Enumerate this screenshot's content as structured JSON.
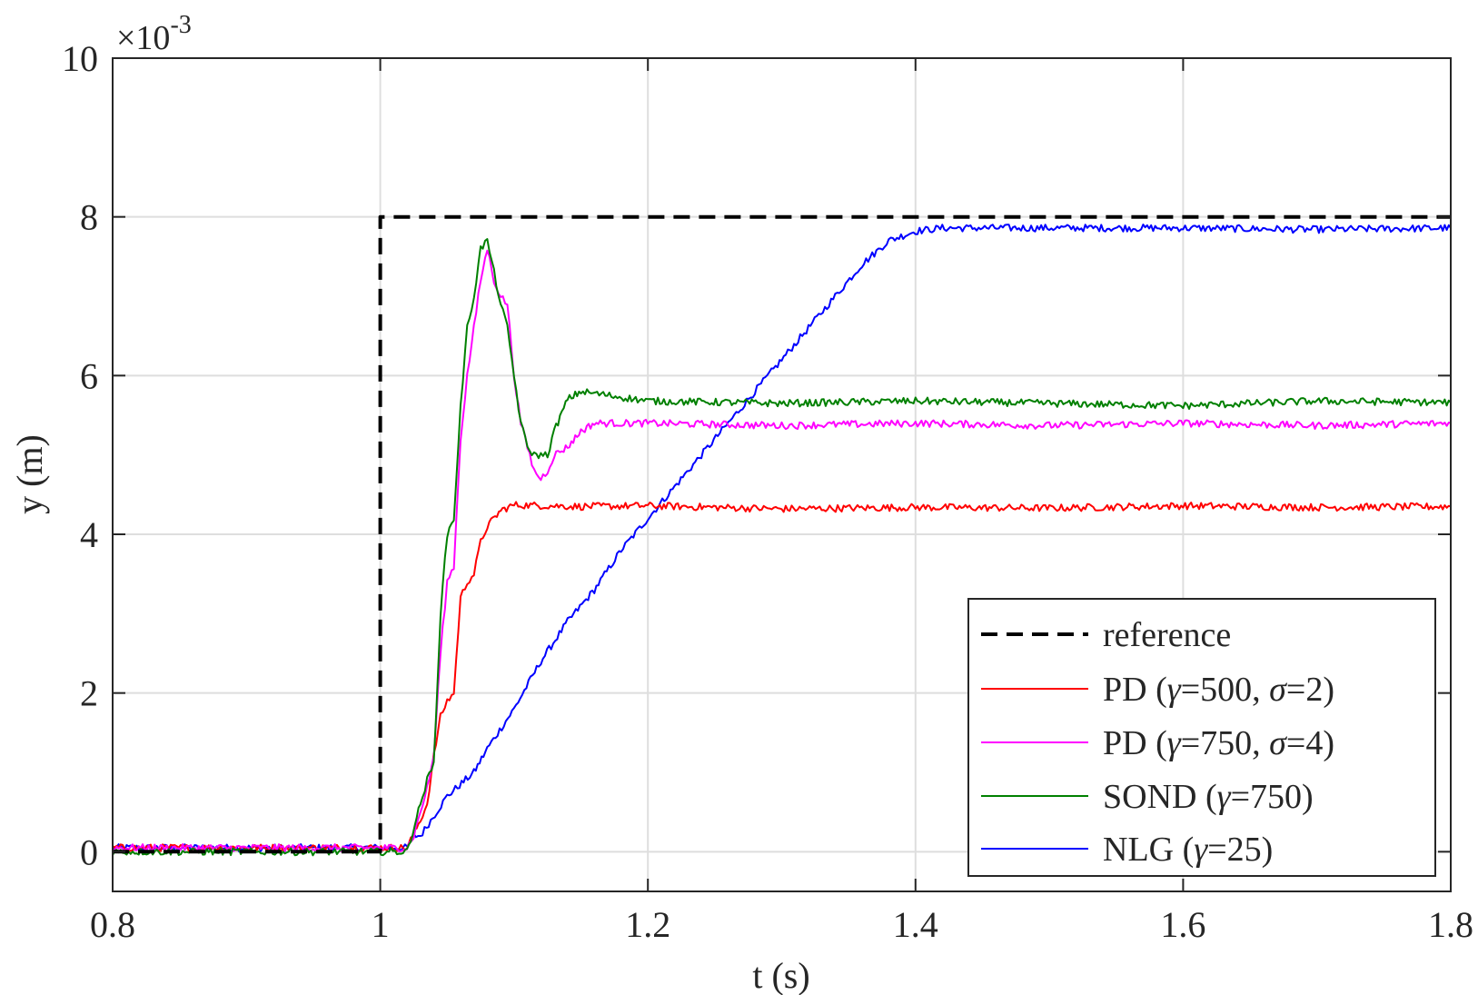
{
  "chart_data": {
    "type": "line",
    "title": "",
    "xlabel": "t (s)",
    "ylabel": "y (m)",
    "y_exponent": {
      "base": "×10",
      "power": "-3"
    },
    "xlim": [
      0.8,
      1.8
    ],
    "ylim": [
      -0.0005,
      0.01
    ],
    "xticks": [
      0.8,
      1.0,
      1.2,
      1.4,
      1.6,
      1.8
    ],
    "xtick_labels": [
      "0.8",
      "1",
      "1.2",
      "1.4",
      "1.6",
      "1.8"
    ],
    "yticks": [
      0,
      0.002,
      0.004,
      0.006,
      0.008,
      0.01
    ],
    "ytick_labels": [
      "0",
      "2",
      "4",
      "6",
      "8",
      "10"
    ],
    "grid": true,
    "legend_position": "bottom-right",
    "series": [
      {
        "key": "reference",
        "name": "reference",
        "color": "#000000",
        "dash": true,
        "points": [
          [
            0.8,
            0.0
          ],
          [
            1.0,
            0.0
          ],
          [
            1.0,
            0.008
          ],
          [
            1.8,
            0.008
          ]
        ]
      },
      {
        "key": "pd500",
        "name": "PD (γ=500, σ=2)",
        "name_parts": {
          "prefix": "PD (",
          "g": "γ",
          "mid": "=500, ",
          "s": "σ",
          "suffix": "=2)"
        },
        "color": "#ff0000",
        "dash": false,
        "points": [
          [
            0.8,
            5e-05
          ],
          [
            1.02,
            5e-05
          ],
          [
            1.03,
            0.0004
          ],
          [
            1.035,
            0.0006
          ],
          [
            1.04,
            0.0012
          ],
          [
            1.045,
            0.0017
          ],
          [
            1.05,
            0.0019
          ],
          [
            1.055,
            0.002
          ],
          [
            1.06,
            0.0032
          ],
          [
            1.065,
            0.0034
          ],
          [
            1.07,
            0.0035
          ],
          [
            1.075,
            0.0039
          ],
          [
            1.08,
            0.0041
          ],
          [
            1.09,
            0.0043
          ],
          [
            1.1,
            0.00437
          ],
          [
            1.15,
            0.00435
          ],
          [
            1.2,
            0.00436
          ],
          [
            1.3,
            0.00432
          ],
          [
            1.4,
            0.00434
          ],
          [
            1.5,
            0.00433
          ],
          [
            1.6,
            0.00436
          ],
          [
            1.7,
            0.00434
          ],
          [
            1.8,
            0.00435
          ]
        ]
      },
      {
        "key": "pd750",
        "name": "PD (γ=750, σ=4)",
        "name_parts": {
          "prefix": "PD (",
          "g": "γ",
          "mid": "=750, ",
          "s": "σ",
          "suffix": "=4)"
        },
        "color": "#ff00ff",
        "dash": false,
        "points": [
          [
            0.8,
            5e-05
          ],
          [
            1.02,
            5e-05
          ],
          [
            1.025,
            0.0002
          ],
          [
            1.03,
            0.0005
          ],
          [
            1.035,
            0.0008
          ],
          [
            1.04,
            0.0012
          ],
          [
            1.045,
            0.0025
          ],
          [
            1.05,
            0.0034
          ],
          [
            1.055,
            0.0036
          ],
          [
            1.06,
            0.0052
          ],
          [
            1.065,
            0.006
          ],
          [
            1.07,
            0.0066
          ],
          [
            1.075,
            0.0072
          ],
          [
            1.08,
            0.0076
          ],
          [
            1.085,
            0.0072
          ],
          [
            1.09,
            0.007
          ],
          [
            1.095,
            0.0069
          ],
          [
            1.1,
            0.006
          ],
          [
            1.105,
            0.0054
          ],
          [
            1.11,
            0.0051
          ],
          [
            1.115,
            0.0048
          ],
          [
            1.12,
            0.0047
          ],
          [
            1.125,
            0.0048
          ],
          [
            1.13,
            0.005
          ],
          [
            1.14,
            0.0051
          ],
          [
            1.15,
            0.0053
          ],
          [
            1.16,
            0.0054
          ],
          [
            1.2,
            0.0054
          ],
          [
            1.3,
            0.00537
          ],
          [
            1.4,
            0.0054
          ],
          [
            1.5,
            0.00537
          ],
          [
            1.6,
            0.0054
          ],
          [
            1.7,
            0.00537
          ],
          [
            1.8,
            0.0054
          ]
        ]
      },
      {
        "key": "sond",
        "name": "SOND (γ=750)",
        "name_parts": {
          "prefix": "SOND (",
          "g": "γ",
          "suffix": "=750)"
        },
        "color": "#008000",
        "dash": false,
        "points": [
          [
            0.8,
            0.0
          ],
          [
            1.02,
            0.0
          ],
          [
            1.03,
            0.0006
          ],
          [
            1.035,
            0.0009
          ],
          [
            1.04,
            0.0011
          ],
          [
            1.045,
            0.003
          ],
          [
            1.05,
            0.004
          ],
          [
            1.055,
            0.0042
          ],
          [
            1.06,
            0.0056
          ],
          [
            1.065,
            0.0066
          ],
          [
            1.07,
            0.007
          ],
          [
            1.075,
            0.0076
          ],
          [
            1.08,
            0.0077
          ],
          [
            1.085,
            0.0073
          ],
          [
            1.09,
            0.0069
          ],
          [
            1.095,
            0.0066
          ],
          [
            1.1,
            0.006
          ],
          [
            1.105,
            0.0054
          ],
          [
            1.11,
            0.0051
          ],
          [
            1.115,
            0.005
          ],
          [
            1.12,
            0.005
          ],
          [
            1.125,
            0.005
          ],
          [
            1.13,
            0.0053
          ],
          [
            1.14,
            0.0057
          ],
          [
            1.15,
            0.0058
          ],
          [
            1.2,
            0.00568
          ],
          [
            1.3,
            0.00565
          ],
          [
            1.4,
            0.00568
          ],
          [
            1.5,
            0.00565
          ],
          [
            1.6,
            0.00562
          ],
          [
            1.7,
            0.00568
          ],
          [
            1.8,
            0.00566
          ]
        ]
      },
      {
        "key": "nlg",
        "name": "NLG (γ=25)",
        "name_parts": {
          "prefix": "NLG (",
          "g": "γ",
          "suffix": "=25)"
        },
        "color": "#0000ff",
        "dash": false,
        "points": [
          [
            0.8,
            5e-05
          ],
          [
            1.02,
            5e-05
          ],
          [
            1.025,
            0.0002
          ],
          [
            1.03,
            0.0002
          ],
          [
            1.05,
            0.0007
          ],
          [
            1.07,
            0.001
          ],
          [
            1.08,
            0.0013
          ],
          [
            1.1,
            0.0018
          ],
          [
            1.12,
            0.0024
          ],
          [
            1.14,
            0.0029
          ],
          [
            1.16,
            0.0033
          ],
          [
            1.18,
            0.0038
          ],
          [
            1.2,
            0.0042
          ],
          [
            1.22,
            0.0046
          ],
          [
            1.24,
            0.005
          ],
          [
            1.26,
            0.0054
          ],
          [
            1.28,
            0.0058
          ],
          [
            1.3,
            0.0062
          ],
          [
            1.32,
            0.0066
          ],
          [
            1.34,
            0.007
          ],
          [
            1.36,
            0.0074
          ],
          [
            1.38,
            0.0077
          ],
          [
            1.4,
            0.00782
          ],
          [
            1.42,
            0.00786
          ],
          [
            1.5,
            0.00786
          ],
          [
            1.6,
            0.00786
          ],
          [
            1.7,
            0.00784
          ],
          [
            1.8,
            0.00786
          ]
        ]
      }
    ]
  }
}
